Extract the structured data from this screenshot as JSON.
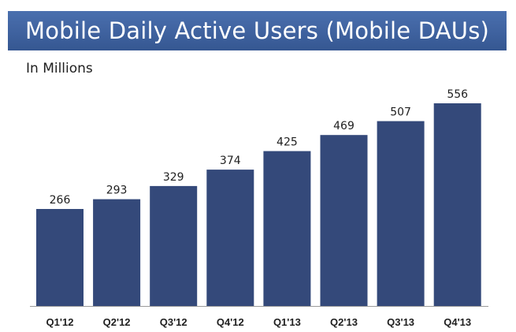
{
  "title": "Mobile Daily Active Users (Mobile DAUs)",
  "subtitle": "In Millions",
  "colors": {
    "title_bar": "#3f629f",
    "title_text": "#ffffff",
    "bar": "#34497a",
    "axis": "#9a9a9a",
    "label": "#1f1f1f"
  },
  "chart_data": {
    "type": "bar",
    "categories": [
      "Q1'12",
      "Q2'12",
      "Q3'12",
      "Q4'12",
      "Q1'13",
      "Q2'13",
      "Q3'13",
      "Q4'13"
    ],
    "values": [
      266,
      293,
      329,
      374,
      425,
      469,
      507,
      556
    ],
    "title": "Mobile Daily Active Users (Mobile DAUs)",
    "subtitle": "In Millions",
    "xlabel": "",
    "ylabel": "",
    "ylim": [
      0,
      556
    ],
    "grid": false,
    "legend": "none",
    "data_labels": true
  }
}
